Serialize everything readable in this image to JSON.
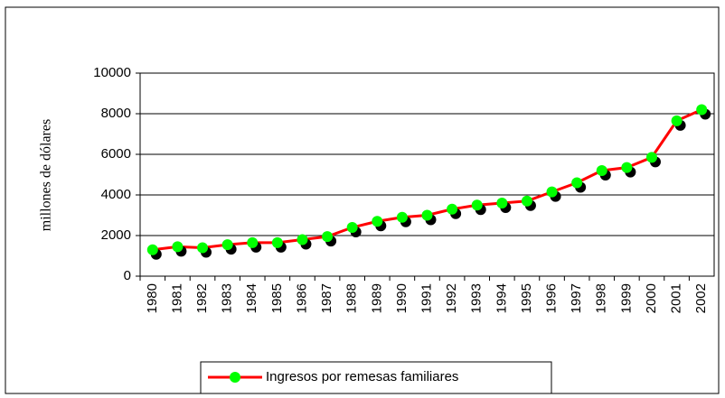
{
  "chart_data": {
    "type": "line",
    "y_label": "millones de dólares",
    "categories": [
      "1980",
      "1981",
      "1982",
      "1983",
      "1984",
      "1985",
      "1986",
      "1987",
      "1988",
      "1989",
      "1990",
      "1991",
      "1992",
      "1993",
      "1994",
      "1995",
      "1996",
      "1997",
      "1998",
      "1999",
      "2000",
      "2001",
      "2002"
    ],
    "series": [
      {
        "name": "Ingresos por remesas familiares",
        "color": "#ff0000",
        "marker_color": "#00ff00",
        "values": [
          1300,
          1450,
          1400,
          1550,
          1650,
          1650,
          1800,
          1950,
          2400,
          2700,
          2900,
          3000,
          3300,
          3500,
          3600,
          3700,
          4150,
          4600,
          5200,
          5350,
          5850,
          7650,
          8200
        ]
      }
    ],
    "ylim": [
      0,
      10000
    ],
    "yticks": [
      0,
      2000,
      4000,
      6000,
      8000,
      10000
    ],
    "grid": true,
    "legend": "bottom"
  }
}
